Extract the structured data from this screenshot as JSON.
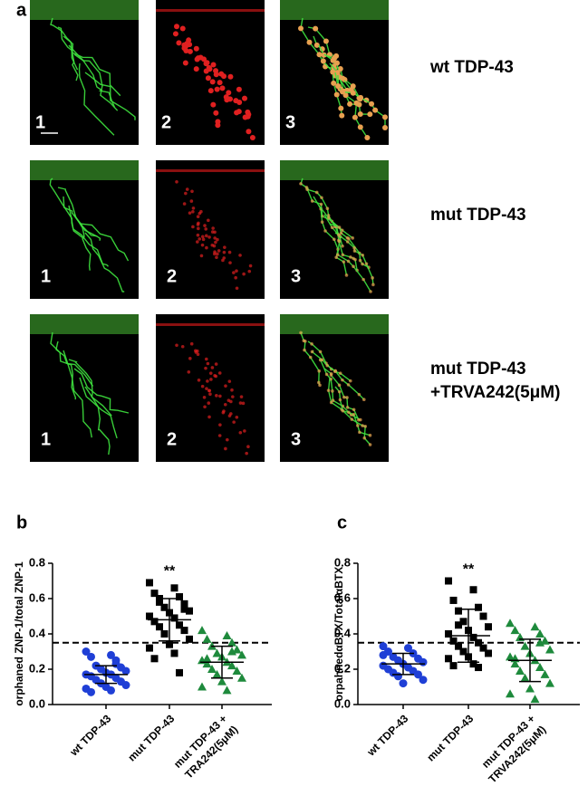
{
  "figure": {
    "panel_a": {
      "label": "a",
      "rows": [
        {
          "title": [
            "wt TDP-43"
          ],
          "images": [
            "1",
            "2",
            "3"
          ]
        },
        {
          "title": [
            "mut TDP-43"
          ],
          "images": [
            "1",
            "2",
            "3"
          ]
        },
        {
          "title": [
            "mut TDP-43",
            "+TRVA242(5μM)"
          ],
          "images": [
            "1",
            "2",
            "3"
          ]
        }
      ]
    }
  },
  "chart_data": [
    {
      "type": "scatter",
      "panel": "b",
      "ylabel": "orphaned ZNP-1/total ZNP-1",
      "categories": [
        [
          "wt TDP-43"
        ],
        [
          "mut TDP-43"
        ],
        [
          "mut TDP-43 +",
          "TRA242(5μM)"
        ]
      ],
      "ylim": [
        0,
        0.8
      ],
      "yticks": [
        {
          "value": 0,
          "label": "0.0"
        },
        0.2,
        0.4,
        0.6,
        0.8
      ],
      "threshold": 0.35,
      "annotations": [
        {
          "category": 1,
          "text": "**"
        }
      ],
      "series": [
        {
          "name": "wt TDP-43",
          "color": "#1f3fd6",
          "marker": "circle",
          "mean": 0.17,
          "sd": 0.05,
          "values": [
            0.3,
            0.28,
            0.27,
            0.25,
            0.22,
            0.21,
            0.2,
            0.19,
            0.18,
            0.17,
            0.17,
            0.16,
            0.15,
            0.14,
            0.13,
            0.12,
            0.11,
            0.1,
            0.09,
            0.08,
            0.07,
            0.23
          ]
        },
        {
          "name": "mut TDP-43",
          "color": "#000000",
          "marker": "square",
          "mean": 0.48,
          "sd": 0.12,
          "values": [
            0.69,
            0.66,
            0.63,
            0.61,
            0.58,
            0.57,
            0.55,
            0.53,
            0.52,
            0.5,
            0.49,
            0.47,
            0.45,
            0.44,
            0.42,
            0.4,
            0.37,
            0.34,
            0.32,
            0.29,
            0.26,
            0.18,
            0.6,
            0.54
          ]
        },
        {
          "name": "mut TDP-43 + TRA242(5μM)",
          "color": "#1e8a3c",
          "marker": "triangle",
          "mean": 0.24,
          "sd": 0.09,
          "values": [
            0.42,
            0.39,
            0.37,
            0.35,
            0.33,
            0.31,
            0.29,
            0.28,
            0.27,
            0.25,
            0.24,
            0.23,
            0.22,
            0.2,
            0.19,
            0.17,
            0.15,
            0.13,
            0.1,
            0.08,
            0.26,
            0.3
          ]
        }
      ]
    },
    {
      "type": "scatter",
      "panel": "c",
      "ylabel": "orpahnedαBTX/TotalαBTX",
      "categories": [
        [
          "wt TDP-43"
        ],
        [
          "mut TDP-43"
        ],
        [
          "mut TDP-43 +",
          "TRVA242(5μM)"
        ]
      ],
      "ylim": [
        0,
        0.8
      ],
      "yticks": [
        {
          "value": 0,
          "label": "0.0"
        },
        0.2,
        0.4,
        0.6,
        0.8
      ],
      "threshold": 0.35,
      "annotations": [
        {
          "category": 1,
          "text": "**"
        }
      ],
      "series": [
        {
          "name": "wt TDP-43",
          "color": "#1f3fd6",
          "marker": "circle",
          "mean": 0.23,
          "sd": 0.06,
          "values": [
            0.33,
            0.32,
            0.3,
            0.29,
            0.27,
            0.26,
            0.25,
            0.24,
            0.23,
            0.22,
            0.21,
            0.2,
            0.19,
            0.18,
            0.17,
            0.16,
            0.14,
            0.12,
            0.28
          ]
        },
        {
          "name": "mut TDP-43",
          "color": "#000000",
          "marker": "square",
          "mean": 0.39,
          "sd": 0.15,
          "values": [
            0.7,
            0.65,
            0.59,
            0.55,
            0.53,
            0.5,
            0.47,
            0.44,
            0.42,
            0.4,
            0.38,
            0.36,
            0.35,
            0.33,
            0.32,
            0.3,
            0.29,
            0.27,
            0.26,
            0.23,
            0.22,
            0.21,
            0.45
          ]
        },
        {
          "name": "mut TDP-43 + TRVA242(5μM)",
          "color": "#1e8a3c",
          "marker": "triangle",
          "mean": 0.25,
          "sd": 0.12,
          "values": [
            0.46,
            0.44,
            0.42,
            0.4,
            0.38,
            0.36,
            0.33,
            0.31,
            0.29,
            0.27,
            0.25,
            0.23,
            0.21,
            0.19,
            0.17,
            0.15,
            0.12,
            0.09,
            0.06,
            0.03,
            0.26,
            0.35
          ]
        }
      ]
    }
  ]
}
